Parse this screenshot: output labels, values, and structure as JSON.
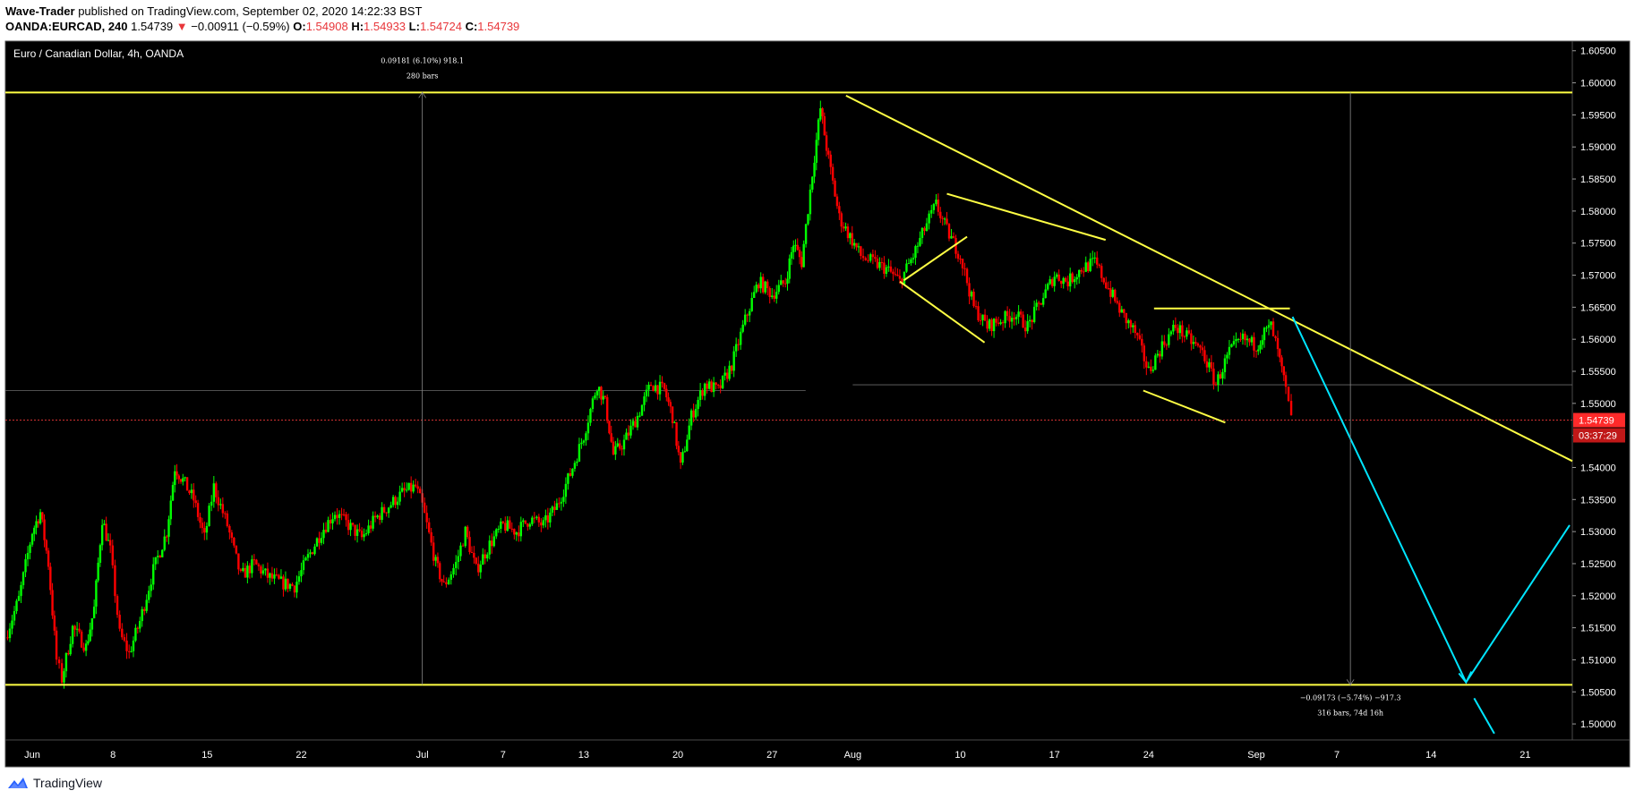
{
  "header": {
    "author": "Wave-Trader",
    "published_text": "published on TradingView.com, September 02, 2020 14:22:33 BST",
    "symbol": "OANDA:EURCAD, 240",
    "last": "1.54739",
    "change_arrow": "▼",
    "change": "−0.00911 (−0.59%)",
    "o_label": "O:",
    "o_value": "1.54908",
    "h_label": "H:",
    "h_value": "1.54933",
    "l_label": "L:",
    "l_value": "1.54724",
    "c_label": "C:",
    "c_value": "1.54739"
  },
  "footer": {
    "brand": "TradingView",
    "logo_icon": "tradingview-logo-icon"
  },
  "colors": {
    "background": "#000000",
    "up": "#00ff00",
    "down": "#ff0000",
    "yellow": "#ffff44",
    "cyan": "#00e5ff",
    "price_tag": "#ff2a2a"
  },
  "chart_data": {
    "type": "candlestick",
    "title": "Euro / Canadian Dollar, 4h, OANDA",
    "timeframe": "4h",
    "ylim": [
      1.4975,
      1.6065
    ],
    "y_ticks": [
      "1.60500",
      "1.60000",
      "1.59500",
      "1.59000",
      "1.58500",
      "1.58000",
      "1.57500",
      "1.57000",
      "1.56500",
      "1.56000",
      "1.55500",
      "1.55000",
      "1.54500",
      "1.54000",
      "1.53500",
      "1.53000",
      "1.52500",
      "1.52000",
      "1.51500",
      "1.51000",
      "1.50500",
      "1.50000"
    ],
    "x_ticks": [
      {
        "label": "Jun",
        "day": 0
      },
      {
        "label": "8",
        "day": 6
      },
      {
        "label": "15",
        "day": 13
      },
      {
        "label": "22",
        "day": 20
      },
      {
        "label": "Jul",
        "day": 29
      },
      {
        "label": "7",
        "day": 35
      },
      {
        "label": "13",
        "day": 41
      },
      {
        "label": "20",
        "day": 48
      },
      {
        "label": "27",
        "day": 55
      },
      {
        "label": "Aug",
        "day": 61
      },
      {
        "label": "10",
        "day": 69
      },
      {
        "label": "17",
        "day": 76
      },
      {
        "label": "24",
        "day": 83
      },
      {
        "label": "Sep",
        "day": 91
      },
      {
        "label": "7",
        "day": 97
      },
      {
        "label": "14",
        "day": 104
      },
      {
        "label": "21",
        "day": 111
      }
    ],
    "x_range_days": [
      -2,
      114.5
    ],
    "last_price": "1.54739",
    "countdown": "03:37:29",
    "price_path": [
      [
        -2,
        1.5135
      ],
      [
        -1,
        1.5195
      ],
      [
        0,
        1.53
      ],
      [
        0.6,
        1.533
      ],
      [
        1.2,
        1.525
      ],
      [
        1.8,
        1.51
      ],
      [
        2.2,
        1.507
      ],
      [
        3,
        1.515
      ],
      [
        4,
        1.512
      ],
      [
        4.6,
        1.518
      ],
      [
        5.2,
        1.532
      ],
      [
        5.8,
        1.527
      ],
      [
        6.5,
        1.514
      ],
      [
        7.2,
        1.511
      ],
      [
        8,
        1.516
      ],
      [
        9,
        1.524
      ],
      [
        10,
        1.53
      ],
      [
        10.6,
        1.54
      ],
      [
        11.2,
        1.538
      ],
      [
        12,
        1.535
      ],
      [
        12.8,
        1.529
      ],
      [
        13.5,
        1.537
      ],
      [
        14.5,
        1.531
      ],
      [
        15.5,
        1.523
      ],
      [
        16.5,
        1.525
      ],
      [
        17.5,
        1.523
      ],
      [
        18.5,
        1.522
      ],
      [
        19.5,
        1.5215
      ],
      [
        20.5,
        1.526
      ],
      [
        21.5,
        1.53
      ],
      [
        22.5,
        1.533
      ],
      [
        23.5,
        1.531
      ],
      [
        24.5,
        1.529
      ],
      [
        25.5,
        1.532
      ],
      [
        26.5,
        1.534
      ],
      [
        27.5,
        1.536
      ],
      [
        28.5,
        1.537
      ],
      [
        29,
        1.534
      ],
      [
        30,
        1.525
      ],
      [
        30.6,
        1.5215
      ],
      [
        31.5,
        1.525
      ],
      [
        32.2,
        1.53
      ],
      [
        33,
        1.524
      ],
      [
        34,
        1.528
      ],
      [
        35,
        1.531
      ],
      [
        36,
        1.53
      ],
      [
        37,
        1.532
      ],
      [
        38,
        1.531
      ],
      [
        39,
        1.534
      ],
      [
        40,
        1.539
      ],
      [
        41,
        1.545
      ],
      [
        42,
        1.553
      ],
      [
        42.6,
        1.55
      ],
      [
        43.2,
        1.542
      ],
      [
        44,
        1.544
      ],
      [
        45,
        1.548
      ],
      [
        46,
        1.553
      ],
      [
        47,
        1.552
      ],
      [
        47.6,
        1.548
      ],
      [
        48.2,
        1.54
      ],
      [
        49,
        1.548
      ],
      [
        50,
        1.553
      ],
      [
        51,
        1.552
      ],
      [
        52,
        1.556
      ],
      [
        53,
        1.563
      ],
      [
        54,
        1.569
      ],
      [
        55,
        1.567
      ],
      [
        56,
        1.569
      ],
      [
        56.6,
        1.575
      ],
      [
        57.2,
        1.572
      ],
      [
        58,
        1.586
      ],
      [
        58.6,
        1.596
      ],
      [
        59.2,
        1.588
      ],
      [
        60,
        1.579
      ],
      [
        60.8,
        1.576
      ],
      [
        61.6,
        1.573
      ],
      [
        62.5,
        1.572
      ],
      [
        63.5,
        1.571
      ],
      [
        64.5,
        1.569
      ],
      [
        65.5,
        1.573
      ],
      [
        66.5,
        1.578
      ],
      [
        67.2,
        1.581
      ],
      [
        68,
        1.577
      ],
      [
        69,
        1.573
      ],
      [
        70,
        1.565
      ],
      [
        71,
        1.562
      ],
      [
        72,
        1.563
      ],
      [
        73,
        1.564
      ],
      [
        74,
        1.562
      ],
      [
        75,
        1.566
      ],
      [
        76,
        1.57
      ],
      [
        77,
        1.569
      ],
      [
        78,
        1.571
      ],
      [
        79,
        1.572
      ],
      [
        80,
        1.568
      ],
      [
        81,
        1.564
      ],
      [
        82,
        1.561
      ],
      [
        83,
        1.555
      ],
      [
        84,
        1.559
      ],
      [
        85,
        1.562
      ],
      [
        86,
        1.56
      ],
      [
        87,
        1.558
      ],
      [
        88,
        1.553
      ],
      [
        89,
        1.558
      ],
      [
        90,
        1.56
      ],
      [
        91,
        1.559
      ],
      [
        91.6,
        1.561
      ],
      [
        92.1,
        1.562
      ],
      [
        92.6,
        1.558
      ],
      [
        93.2,
        1.552
      ],
      [
        93.6,
        1.5474
      ]
    ],
    "annotations": {
      "horizontal_lines": [
        1.5985,
        1.5061
      ],
      "gray_lines": [
        1.552,
        1.5529
      ],
      "descending_trendline": [
        [
          60.5,
          1.598
        ],
        [
          114.5,
          1.541
        ]
      ],
      "flag_upper": [
        [
          68,
          1.5827
        ],
        [
          79.8,
          1.5755
        ]
      ],
      "flag_lower": [
        [
          64.5,
          1.569
        ],
        [
          70.8,
          1.5595
        ]
      ],
      "flag_pole": [
        [
          64.8,
          1.5692
        ],
        [
          69.5,
          1.576
        ]
      ],
      "range_top": [
        [
          83.4,
          1.5648
        ],
        [
          93.5,
          1.5648
        ]
      ],
      "range_bottom": [
        [
          82.6,
          1.552
        ],
        [
          88.7,
          1.547
        ]
      ],
      "cyan_path": [
        [
          93.7,
          1.5635
        ],
        [
          106.6,
          1.5065
        ],
        [
          114.3,
          1.531
        ]
      ],
      "cyan_extra": [
        [
          107.2,
          1.504
        ],
        [
          108.7,
          1.4985
        ]
      ],
      "measure_up": {
        "day": 29,
        "from": 1.5061,
        "to": 1.5985,
        "label1": "0.09181 (6.10%) 918.1",
        "label2": "280 bars"
      },
      "measure_down": {
        "day": 98,
        "from": 1.5985,
        "to": 1.5061,
        "label1": "−0.09173 (−5.74%) −917.3",
        "label2": "316 bars, 74d 16h"
      }
    }
  }
}
